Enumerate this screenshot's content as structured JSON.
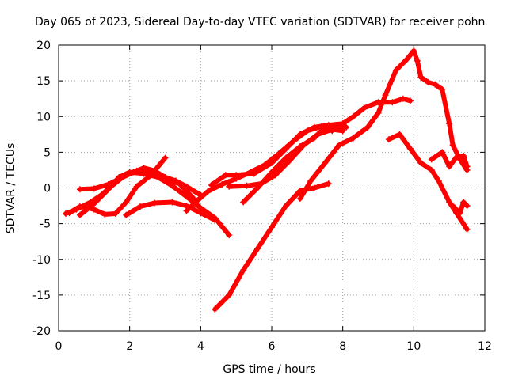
{
  "chart_data": {
    "type": "scatter",
    "title": "Day 065 of 2023, Sidereal Day-to-day VTEC variation (SDTVAR) for receiver pohn",
    "xlabel": "GPS time / hours",
    "ylabel": "SDTVAR / TECUs",
    "xlim": [
      0,
      12
    ],
    "ylim": [
      -20,
      20
    ],
    "xticks": [
      "0",
      "2",
      "4",
      "6",
      "8",
      "10",
      "12"
    ],
    "yticks": [
      "-20",
      "-15",
      "-10",
      "-5",
      "0",
      "5",
      "10",
      "15",
      "20"
    ],
    "grid": true,
    "marker": "+",
    "color": "#ff0000",
    "series": [
      {
        "points": [
          [
            0.2,
            -3.6
          ],
          [
            0.5,
            -3.0
          ],
          [
            0.9,
            -2.0
          ],
          [
            1.2,
            -1.0
          ],
          [
            1.5,
            0.3
          ],
          [
            1.8,
            1.5
          ],
          [
            2.1,
            2.2
          ],
          [
            2.4,
            2.8
          ],
          [
            2.7,
            2.4
          ],
          [
            3.0,
            1.5
          ],
          [
            3.3,
            1.0
          ],
          [
            3.6,
            0.2
          ],
          [
            4.0,
            -1.0
          ]
        ]
      },
      {
        "points": [
          [
            0.6,
            -3.8
          ],
          [
            1.0,
            -2.2
          ],
          [
            1.4,
            -0.2
          ],
          [
            1.7,
            1.5
          ],
          [
            2.0,
            2.2
          ],
          [
            2.4,
            2.0
          ],
          [
            2.8,
            1.5
          ],
          [
            3.2,
            0.3
          ],
          [
            3.6,
            -1.2
          ],
          [
            4.0,
            -2.8
          ],
          [
            4.4,
            -4.2
          ],
          [
            4.8,
            -6.6
          ]
        ]
      },
      {
        "points": [
          [
            0.3,
            -3.5
          ],
          [
            0.6,
            -2.6
          ],
          [
            1.0,
            -3.0
          ],
          [
            1.3,
            -3.7
          ],
          [
            1.6,
            -3.6
          ],
          [
            1.9,
            -2.0
          ],
          [
            2.2,
            0.2
          ],
          [
            2.6,
            1.8
          ],
          [
            3.0,
            4.2
          ]
        ]
      },
      {
        "points": [
          [
            1.9,
            -3.8
          ],
          [
            2.3,
            -2.6
          ],
          [
            2.7,
            -2.1
          ],
          [
            3.2,
            -2.0
          ],
          [
            3.6,
            -2.5
          ],
          [
            4.0,
            -3.5
          ],
          [
            4.4,
            -4.5
          ]
        ]
      },
      {
        "points": [
          [
            0.6,
            -0.2
          ],
          [
            1.0,
            -0.1
          ],
          [
            1.4,
            0.5
          ],
          [
            1.8,
            1.5
          ],
          [
            2.2,
            2.4
          ],
          [
            2.6,
            2.0
          ],
          [
            3.0,
            1.2
          ],
          [
            3.4,
            0.6
          ],
          [
            3.8,
            -1.5
          ]
        ]
      },
      {
        "points": [
          [
            3.6,
            -3.2
          ],
          [
            3.9,
            -1.8
          ],
          [
            4.2,
            -0.5
          ],
          [
            4.6,
            0.5
          ],
          [
            5.0,
            1.3
          ],
          [
            5.4,
            2.2
          ],
          [
            5.8,
            3.2
          ],
          [
            6.2,
            4.8
          ],
          [
            6.6,
            6.5
          ],
          [
            7.0,
            8.0
          ],
          [
            7.4,
            8.6
          ],
          [
            7.8,
            8.8
          ],
          [
            8.1,
            8.5
          ]
        ]
      },
      {
        "points": [
          [
            4.3,
            0.4
          ],
          [
            4.7,
            1.8
          ],
          [
            5.0,
            1.8
          ],
          [
            5.5,
            2.0
          ],
          [
            6.0,
            3.5
          ],
          [
            6.4,
            5.5
          ],
          [
            6.8,
            7.5
          ],
          [
            7.2,
            8.5
          ],
          [
            7.6,
            8.8
          ],
          [
            8.0,
            9.0
          ],
          [
            8.3,
            10.0
          ],
          [
            8.6,
            11.2
          ],
          [
            9.0,
            12.0
          ],
          [
            9.4,
            12.0
          ],
          [
            9.7,
            12.5
          ],
          [
            9.9,
            12.2
          ]
        ]
      },
      {
        "points": [
          [
            4.8,
            0.2
          ],
          [
            5.3,
            0.3
          ],
          [
            5.7,
            0.6
          ],
          [
            6.1,
            1.8
          ],
          [
            6.5,
            3.8
          ],
          [
            6.9,
            6.0
          ],
          [
            7.3,
            7.5
          ],
          [
            7.7,
            8.2
          ],
          [
            8.0,
            8.0
          ]
        ]
      },
      {
        "points": [
          [
            5.2,
            -2.0
          ],
          [
            5.6,
            0.0
          ],
          [
            6.0,
            2.2
          ],
          [
            6.4,
            4.2
          ],
          [
            6.8,
            5.8
          ],
          [
            7.2,
            7.0
          ],
          [
            7.5,
            8.5
          ],
          [
            7.7,
            8.0
          ]
        ]
      },
      {
        "points": [
          [
            4.4,
            -17.0
          ],
          [
            4.8,
            -15.0
          ],
          [
            5.2,
            -11.5
          ],
          [
            5.6,
            -8.5
          ],
          [
            6.0,
            -5.5
          ],
          [
            6.4,
            -2.5
          ],
          [
            6.8,
            -0.4
          ],
          [
            7.2,
            0.0
          ],
          [
            7.6,
            0.6
          ]
        ]
      },
      {
        "points": [
          [
            6.8,
            -1.5
          ],
          [
            7.1,
            1.0
          ],
          [
            7.5,
            3.5
          ],
          [
            7.9,
            6.0
          ],
          [
            8.3,
            7.0
          ],
          [
            8.7,
            8.5
          ],
          [
            9.0,
            10.5
          ],
          [
            9.2,
            13.0
          ],
          [
            9.5,
            16.5
          ],
          [
            9.8,
            18.0
          ],
          [
            10.0,
            19.2
          ],
          [
            10.1,
            17.8
          ],
          [
            10.2,
            15.5
          ],
          [
            10.4,
            14.8
          ],
          [
            10.6,
            14.5
          ],
          [
            10.8,
            13.8
          ],
          [
            11.0,
            9.0
          ],
          [
            11.1,
            6.0
          ],
          [
            11.3,
            4.0
          ],
          [
            11.5,
            2.5
          ]
        ]
      },
      {
        "points": [
          [
            9.3,
            6.8
          ],
          [
            9.6,
            7.5
          ],
          [
            9.9,
            5.5
          ],
          [
            10.2,
            3.5
          ],
          [
            10.5,
            2.5
          ],
          [
            10.7,
            1.0
          ],
          [
            11.0,
            -2.0
          ],
          [
            11.2,
            -3.5
          ],
          [
            11.5,
            -5.8
          ]
        ]
      },
      {
        "points": [
          [
            10.5,
            4.0
          ],
          [
            10.8,
            5.0
          ],
          [
            11.0,
            3.0
          ],
          [
            11.2,
            4.3
          ],
          [
            11.4,
            4.5
          ],
          [
            11.5,
            3.0
          ]
        ]
      },
      {
        "points": [
          [
            11.1,
            -2.5
          ],
          [
            11.3,
            -3.5
          ],
          [
            11.4,
            -2.0
          ],
          [
            11.5,
            -2.5
          ]
        ]
      }
    ]
  }
}
